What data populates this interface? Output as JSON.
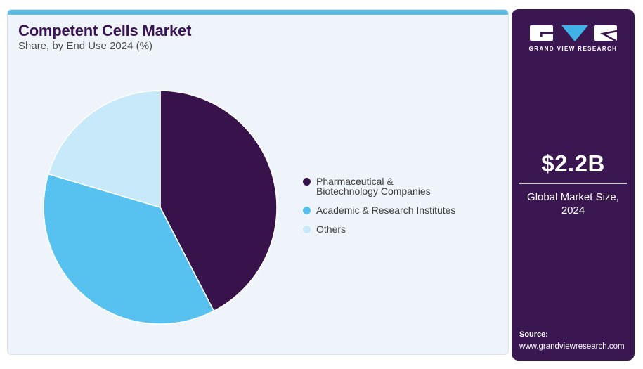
{
  "header": {
    "title": "Competent Cells Market",
    "subtitle": "Share, by End Use 2024 (%)"
  },
  "chart_data": {
    "type": "pie",
    "title": "Competent Cells Market Share, by End Use 2024 (%)",
    "unit": "percent market share (estimated from slice angles)",
    "labels": [
      "Pharmaceutical &\nBiotechnology Companies",
      "Academic & Research Institutes",
      "Others"
    ],
    "values": [
      42.4,
      37.2,
      20.4
    ],
    "colors": [
      "#38124A",
      "#57C2EF",
      "#C7E9FA"
    ],
    "start_angle_deg": 0,
    "direction": "clockwise",
    "legend_position": "right",
    "slice_border_color": "#FFFFFF"
  },
  "sidebar": {
    "logo_text": "GRAND VIEW RESEARCH",
    "market_size_value": "$2.2B",
    "market_size_label": "Global Market Size,\n2024",
    "source_label": "Source:",
    "source_url": "www.grandviewresearch.com",
    "background_color": "#3A1750",
    "accent_color": "#5BBCE8",
    "logo_triangle_color": "#3FB3E8"
  }
}
